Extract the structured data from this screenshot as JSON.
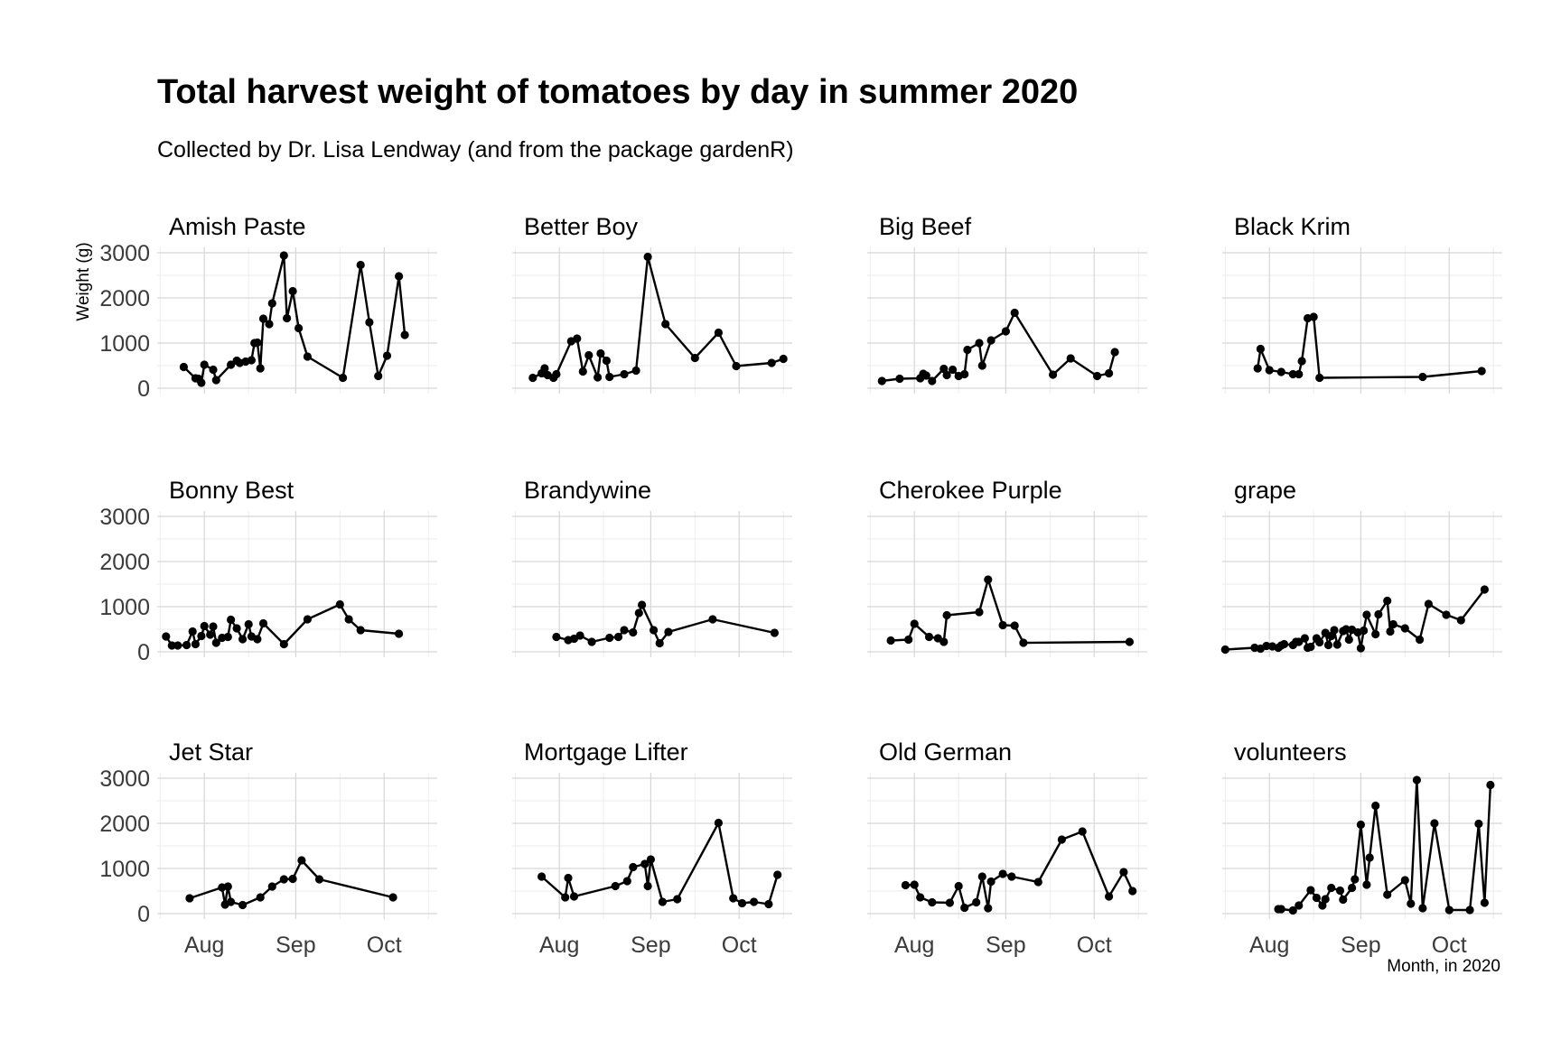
{
  "chart_data": {
    "type": "line",
    "title": "Total harvest weight of tomatoes by day in summer 2020",
    "subtitle": "Collected by Dr. Lisa Lendway (and from the package gardenR)",
    "xlabel": "Month, in 2020",
    "ylabel": "Weight (g)",
    "xlim": [
      "2020-07-16",
      "2020-10-19"
    ],
    "ylim": [
      0,
      3000
    ],
    "x_ticks": [
      "2020-08-01",
      "2020-09-01",
      "2020-10-01"
    ],
    "x_tick_labels": [
      "Aug",
      "Sep",
      "Oct"
    ],
    "y_ticks": [
      0,
      1000,
      2000,
      3000
    ],
    "y_tick_labels": [
      "0",
      "1000",
      "2000",
      "3000"
    ],
    "grid": true,
    "legend": "none",
    "facets": [
      {
        "name": "Amish Paste",
        "points": [
          [
            "2020-07-25",
            470
          ],
          [
            "2020-07-29",
            220
          ],
          [
            "2020-07-30",
            210
          ],
          [
            "2020-07-31",
            120
          ],
          [
            "2020-08-01",
            520
          ],
          [
            "2020-08-04",
            410
          ],
          [
            "2020-08-05",
            180
          ],
          [
            "2020-08-10",
            520
          ],
          [
            "2020-08-12",
            610
          ],
          [
            "2020-08-13",
            560
          ],
          [
            "2020-08-15",
            590
          ],
          [
            "2020-08-17",
            620
          ],
          [
            "2020-08-18",
            1000
          ],
          [
            "2020-08-19",
            1010
          ],
          [
            "2020-08-20",
            440
          ],
          [
            "2020-08-21",
            1540
          ],
          [
            "2020-08-23",
            1420
          ],
          [
            "2020-08-24",
            1880
          ],
          [
            "2020-08-28",
            2940
          ],
          [
            "2020-08-29",
            1550
          ],
          [
            "2020-08-31",
            2150
          ],
          [
            "2020-09-02",
            1330
          ],
          [
            "2020-09-05",
            700
          ],
          [
            "2020-09-17",
            230
          ],
          [
            "2020-09-23",
            2730
          ],
          [
            "2020-09-26",
            1460
          ],
          [
            "2020-09-29",
            270
          ],
          [
            "2020-10-02",
            720
          ],
          [
            "2020-10-06",
            2480
          ],
          [
            "2020-10-08",
            1180
          ]
        ]
      },
      {
        "name": "Better Boy",
        "points": [
          [
            "2020-07-23",
            230
          ],
          [
            "2020-07-26",
            330
          ],
          [
            "2020-07-27",
            440
          ],
          [
            "2020-07-28",
            290
          ],
          [
            "2020-07-30",
            230
          ],
          [
            "2020-07-31",
            310
          ],
          [
            "2020-08-05",
            1040
          ],
          [
            "2020-08-07",
            1100
          ],
          [
            "2020-08-09",
            370
          ],
          [
            "2020-08-11",
            730
          ],
          [
            "2020-08-14",
            240
          ],
          [
            "2020-08-15",
            770
          ],
          [
            "2020-08-17",
            610
          ],
          [
            "2020-08-18",
            250
          ],
          [
            "2020-08-23",
            310
          ],
          [
            "2020-08-27",
            390
          ],
          [
            "2020-08-31",
            2910
          ],
          [
            "2020-09-06",
            1420
          ],
          [
            "2020-09-16",
            670
          ],
          [
            "2020-09-24",
            1230
          ],
          [
            "2020-09-30",
            490
          ],
          [
            "2020-10-12",
            560
          ],
          [
            "2020-10-16",
            650
          ]
        ]
      },
      {
        "name": "Big Beef",
        "points": [
          [
            "2020-07-21",
            160
          ],
          [
            "2020-07-27",
            210
          ],
          [
            "2020-08-03",
            220
          ],
          [
            "2020-08-04",
            320
          ],
          [
            "2020-08-05",
            280
          ],
          [
            "2020-08-07",
            160
          ],
          [
            "2020-08-11",
            430
          ],
          [
            "2020-08-12",
            290
          ],
          [
            "2020-08-14",
            410
          ],
          [
            "2020-08-16",
            270
          ],
          [
            "2020-08-18",
            310
          ],
          [
            "2020-08-19",
            850
          ],
          [
            "2020-08-23",
            1000
          ],
          [
            "2020-08-24",
            500
          ],
          [
            "2020-08-27",
            1060
          ],
          [
            "2020-09-01",
            1260
          ],
          [
            "2020-09-04",
            1670
          ],
          [
            "2020-09-17",
            300
          ],
          [
            "2020-09-23",
            660
          ],
          [
            "2020-10-02",
            270
          ],
          [
            "2020-10-06",
            330
          ],
          [
            "2020-10-08",
            800
          ]
        ]
      },
      {
        "name": "Black Krim",
        "points": [
          [
            "2020-07-28",
            440
          ],
          [
            "2020-07-29",
            870
          ],
          [
            "2020-08-01",
            400
          ],
          [
            "2020-08-05",
            360
          ],
          [
            "2020-08-09",
            310
          ],
          [
            "2020-08-11",
            310
          ],
          [
            "2020-08-12",
            600
          ],
          [
            "2020-08-14",
            1550
          ],
          [
            "2020-08-16",
            1580
          ],
          [
            "2020-08-18",
            230
          ],
          [
            "2020-09-22",
            250
          ],
          [
            "2020-10-12",
            380
          ]
        ]
      },
      {
        "name": "Bonny Best",
        "points": [
          [
            "2020-07-19",
            340
          ],
          [
            "2020-07-21",
            140
          ],
          [
            "2020-07-23",
            140
          ],
          [
            "2020-07-26",
            150
          ],
          [
            "2020-07-28",
            450
          ],
          [
            "2020-07-29",
            170
          ],
          [
            "2020-07-31",
            350
          ],
          [
            "2020-08-01",
            570
          ],
          [
            "2020-08-03",
            380
          ],
          [
            "2020-08-04",
            560
          ],
          [
            "2020-08-05",
            200
          ],
          [
            "2020-08-07",
            310
          ],
          [
            "2020-08-09",
            330
          ],
          [
            "2020-08-10",
            710
          ],
          [
            "2020-08-12",
            520
          ],
          [
            "2020-08-14",
            280
          ],
          [
            "2020-08-16",
            610
          ],
          [
            "2020-08-17",
            340
          ],
          [
            "2020-08-19",
            280
          ],
          [
            "2020-08-21",
            630
          ],
          [
            "2020-08-28",
            170
          ],
          [
            "2020-09-05",
            720
          ],
          [
            "2020-09-16",
            1050
          ],
          [
            "2020-09-19",
            720
          ],
          [
            "2020-09-23",
            480
          ],
          [
            "2020-10-06",
            400
          ]
        ]
      },
      {
        "name": "Brandywine",
        "points": [
          [
            "2020-07-31",
            330
          ],
          [
            "2020-08-04",
            260
          ],
          [
            "2020-08-06",
            290
          ],
          [
            "2020-08-08",
            360
          ],
          [
            "2020-08-12",
            220
          ],
          [
            "2020-08-18",
            310
          ],
          [
            "2020-08-21",
            330
          ],
          [
            "2020-08-23",
            480
          ],
          [
            "2020-08-26",
            430
          ],
          [
            "2020-08-28",
            860
          ],
          [
            "2020-08-29",
            1040
          ],
          [
            "2020-09-02",
            480
          ],
          [
            "2020-09-04",
            190
          ],
          [
            "2020-09-07",
            440
          ],
          [
            "2020-09-22",
            720
          ],
          [
            "2020-10-13",
            420
          ]
        ]
      },
      {
        "name": "Cherokee Purple",
        "points": [
          [
            "2020-07-24",
            250
          ],
          [
            "2020-07-30",
            270
          ],
          [
            "2020-08-01",
            620
          ],
          [
            "2020-08-06",
            330
          ],
          [
            "2020-08-09",
            300
          ],
          [
            "2020-08-11",
            220
          ],
          [
            "2020-08-12",
            810
          ],
          [
            "2020-08-23",
            880
          ],
          [
            "2020-08-26",
            1600
          ],
          [
            "2020-08-31",
            590
          ],
          [
            "2020-09-04",
            580
          ],
          [
            "2020-09-07",
            200
          ],
          [
            "2020-10-13",
            220
          ]
        ]
      },
      {
        "name": "grape",
        "points": [
          [
            "2020-07-17",
            50
          ],
          [
            "2020-07-27",
            90
          ],
          [
            "2020-07-29",
            70
          ],
          [
            "2020-07-31",
            130
          ],
          [
            "2020-08-02",
            120
          ],
          [
            "2020-08-04",
            90
          ],
          [
            "2020-08-05",
            140
          ],
          [
            "2020-08-06",
            170
          ],
          [
            "2020-08-09",
            150
          ],
          [
            "2020-08-10",
            220
          ],
          [
            "2020-08-11",
            220
          ],
          [
            "2020-08-13",
            300
          ],
          [
            "2020-08-14",
            90
          ],
          [
            "2020-08-15",
            110
          ],
          [
            "2020-08-17",
            300
          ],
          [
            "2020-08-18",
            210
          ],
          [
            "2020-08-20",
            420
          ],
          [
            "2020-08-21",
            150
          ],
          [
            "2020-08-22",
            350
          ],
          [
            "2020-08-23",
            480
          ],
          [
            "2020-08-24",
            160
          ],
          [
            "2020-08-26",
            460
          ],
          [
            "2020-08-27",
            500
          ],
          [
            "2020-08-28",
            270
          ],
          [
            "2020-08-29",
            490
          ],
          [
            "2020-08-31",
            430
          ],
          [
            "2020-09-01",
            80
          ],
          [
            "2020-09-02",
            470
          ],
          [
            "2020-09-03",
            820
          ],
          [
            "2020-09-06",
            390
          ],
          [
            "2020-09-07",
            830
          ],
          [
            "2020-09-10",
            1130
          ],
          [
            "2020-09-11",
            450
          ],
          [
            "2020-09-12",
            610
          ],
          [
            "2020-09-16",
            520
          ],
          [
            "2020-09-21",
            270
          ],
          [
            "2020-09-24",
            1060
          ],
          [
            "2020-09-30",
            820
          ],
          [
            "2020-10-05",
            700
          ],
          [
            "2020-10-13",
            1380
          ]
        ]
      },
      {
        "name": "Jet Star",
        "points": [
          [
            "2020-07-27",
            340
          ],
          [
            "2020-08-07",
            580
          ],
          [
            "2020-08-08",
            200
          ],
          [
            "2020-08-09",
            600
          ],
          [
            "2020-08-10",
            260
          ],
          [
            "2020-08-14",
            190
          ],
          [
            "2020-08-20",
            360
          ],
          [
            "2020-08-24",
            600
          ],
          [
            "2020-08-28",
            760
          ],
          [
            "2020-08-31",
            770
          ],
          [
            "2020-09-03",
            1180
          ],
          [
            "2020-09-09",
            760
          ],
          [
            "2020-10-04",
            360
          ]
        ]
      },
      {
        "name": "Mortgage Lifter",
        "points": [
          [
            "2020-07-26",
            820
          ],
          [
            "2020-08-03",
            360
          ],
          [
            "2020-08-04",
            790
          ],
          [
            "2020-08-06",
            380
          ],
          [
            "2020-08-20",
            610
          ],
          [
            "2020-08-24",
            720
          ],
          [
            "2020-08-26",
            1030
          ],
          [
            "2020-08-30",
            1100
          ],
          [
            "2020-08-31",
            610
          ],
          [
            "2020-09-01",
            1200
          ],
          [
            "2020-09-05",
            260
          ],
          [
            "2020-09-10",
            320
          ],
          [
            "2020-09-24",
            2010
          ],
          [
            "2020-09-29",
            340
          ],
          [
            "2020-10-02",
            230
          ],
          [
            "2020-10-06",
            260
          ],
          [
            "2020-10-11",
            210
          ],
          [
            "2020-10-14",
            860
          ]
        ]
      },
      {
        "name": "Old German",
        "points": [
          [
            "2020-07-29",
            630
          ],
          [
            "2020-08-01",
            640
          ],
          [
            "2020-08-03",
            360
          ],
          [
            "2020-08-07",
            250
          ],
          [
            "2020-08-13",
            240
          ],
          [
            "2020-08-16",
            610
          ],
          [
            "2020-08-18",
            130
          ],
          [
            "2020-08-22",
            250
          ],
          [
            "2020-08-24",
            820
          ],
          [
            "2020-08-26",
            120
          ],
          [
            "2020-08-27",
            710
          ],
          [
            "2020-08-31",
            880
          ],
          [
            "2020-09-03",
            820
          ],
          [
            "2020-09-12",
            700
          ],
          [
            "2020-09-20",
            1640
          ],
          [
            "2020-09-27",
            1820
          ],
          [
            "2020-10-06",
            380
          ],
          [
            "2020-10-11",
            920
          ],
          [
            "2020-10-14",
            500
          ]
        ]
      },
      {
        "name": "volunteers",
        "points": [
          [
            "2020-08-04",
            100
          ],
          [
            "2020-08-05",
            100
          ],
          [
            "2020-08-09",
            70
          ],
          [
            "2020-08-11",
            180
          ],
          [
            "2020-08-15",
            520
          ],
          [
            "2020-08-17",
            350
          ],
          [
            "2020-08-19",
            180
          ],
          [
            "2020-08-20",
            320
          ],
          [
            "2020-08-22",
            570
          ],
          [
            "2020-08-25",
            510
          ],
          [
            "2020-08-26",
            310
          ],
          [
            "2020-08-29",
            570
          ],
          [
            "2020-08-30",
            760
          ],
          [
            "2020-09-01",
            1970
          ],
          [
            "2020-09-03",
            640
          ],
          [
            "2020-09-04",
            1240
          ],
          [
            "2020-09-06",
            2390
          ],
          [
            "2020-09-10",
            420
          ],
          [
            "2020-09-16",
            740
          ],
          [
            "2020-09-18",
            220
          ],
          [
            "2020-09-20",
            2960
          ],
          [
            "2020-09-22",
            120
          ],
          [
            "2020-09-26",
            2000
          ],
          [
            "2020-10-01",
            80
          ],
          [
            "2020-10-08",
            80
          ],
          [
            "2020-10-11",
            1990
          ],
          [
            "2020-10-13",
            240
          ],
          [
            "2020-10-15",
            2850
          ]
        ]
      }
    ]
  }
}
